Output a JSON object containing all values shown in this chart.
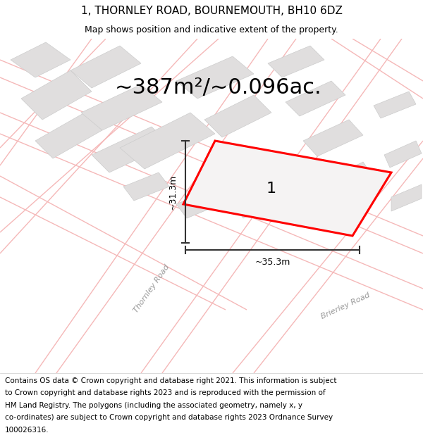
{
  "title": "1, THORNLEY ROAD, BOURNEMOUTH, BH10 6DZ",
  "subtitle": "Map shows position and indicative extent of the property.",
  "area_text": "~387m²/~0.096ac.",
  "plot_label": "1",
  "dim_vertical": "~31.3m",
  "dim_horizontal": "~35.3m",
  "street_label1": "Thornley Road",
  "street_label2": "Brierley Road",
  "footer_lines": [
    "Contains OS data © Crown copyright and database right 2021. This information is subject",
    "to Crown copyright and database rights 2023 and is reproduced with the permission of",
    "HM Land Registry. The polygons (including the associated geometry, namely x, y",
    "co-ordinates) are subject to Crown copyright and database rights 2023 Ordnance Survey",
    "100026316."
  ],
  "map_bg": "#f2f0f0",
  "road_color": "#f5b8b8",
  "road_lw": 1.0,
  "building_color": "#e0dede",
  "building_edge": "#cccccc",
  "plot_color": "#ff0000",
  "plot_fill": "#f5f3f3",
  "dim_color": "#333333",
  "title_fontsize": 11,
  "subtitle_fontsize": 9,
  "area_fontsize": 22,
  "label_fontsize": 16,
  "footer_fontsize": 7.5,
  "street_fontsize": 8
}
